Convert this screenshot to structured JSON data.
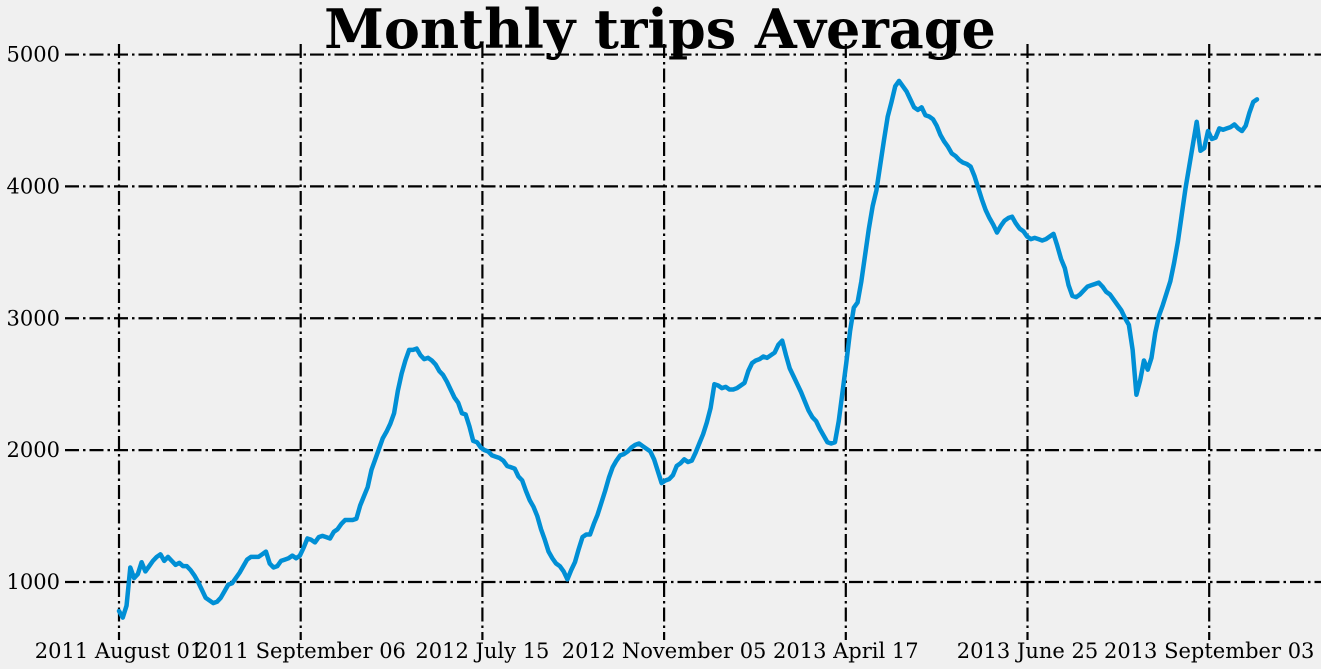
{
  "chart_data": {
    "type": "line",
    "title": "Monthly trips Average",
    "xlabel": "",
    "ylabel": "",
    "x_tick_labels": [
      "2011 August 01",
      "2011 September 06",
      "2012 July 15",
      "2012 November 05",
      "2013 April 17",
      "2013 June 25",
      "2013 September 03"
    ],
    "y_ticks": [
      1000,
      2000,
      3000,
      4000,
      5000
    ],
    "ylim": [
      560,
      5080
    ],
    "grid": true,
    "colors": {
      "series": "#008fd5",
      "background": "#f0f0f0",
      "grid": "#000000"
    },
    "series": [
      {
        "values": [
          780,
          730,
          820,
          1110,
          1030,
          1060,
          1150,
          1080,
          1120,
          1160,
          1190,
          1210,
          1160,
          1190,
          1160,
          1130,
          1145,
          1120,
          1120,
          1090,
          1050,
          1000,
          940,
          880,
          860,
          840,
          850,
          880,
          930,
          980,
          990,
          1030,
          1070,
          1120,
          1170,
          1190,
          1190,
          1190,
          1210,
          1230,
          1140,
          1110,
          1120,
          1160,
          1170,
          1180,
          1200,
          1180,
          1200,
          1260,
          1330,
          1320,
          1300,
          1340,
          1350,
          1340,
          1330,
          1380,
          1400,
          1440,
          1470,
          1470,
          1470,
          1480,
          1580,
          1650,
          1720,
          1850,
          1930,
          2010,
          2090,
          2140,
          2200,
          2280,
          2450,
          2580,
          2680,
          2760,
          2760,
          2770,
          2720,
          2690,
          2700,
          2680,
          2650,
          2600,
          2570,
          2520,
          2460,
          2400,
          2360,
          2280,
          2270,
          2180,
          2070,
          2060,
          2020,
          2000,
          1990,
          1960,
          1950,
          1940,
          1920,
          1880,
          1870,
          1860,
          1800,
          1770,
          1690,
          1620,
          1570,
          1500,
          1400,
          1320,
          1230,
          1180,
          1140,
          1120,
          1080,
          1020,
          1090,
          1150,
          1250,
          1340,
          1360,
          1360,
          1440,
          1510,
          1600,
          1690,
          1790,
          1870,
          1920,
          1960,
          1970,
          1990,
          2020,
          2040,
          2050,
          2030,
          2010,
          1990,
          1930,
          1840,
          1750,
          1770,
          1780,
          1810,
          1880,
          1900,
          1930,
          1910,
          1920,
          1980,
          2050,
          2120,
          2210,
          2320,
          2500,
          2490,
          2470,
          2480,
          2460,
          2460,
          2470,
          2490,
          2510,
          2600,
          2660,
          2680,
          2690,
          2710,
          2700,
          2720,
          2740,
          2800,
          2830,
          2720,
          2620,
          2560,
          2500,
          2440,
          2370,
          2300,
          2250,
          2220,
          2160,
          2110,
          2060,
          2050,
          2060,
          2220,
          2440,
          2660,
          2900,
          3080,
          3120,
          3280,
          3480,
          3680,
          3850,
          3970,
          4160,
          4350,
          4530,
          4640,
          4760,
          4800,
          4760,
          4720,
          4660,
          4600,
          4580,
          4600,
          4540,
          4530,
          4510,
          4460,
          4390,
          4340,
          4300,
          4250,
          4230,
          4200,
          4180,
          4170,
          4150,
          4080,
          3990,
          3900,
          3820,
          3760,
          3710,
          3650,
          3700,
          3740,
          3760,
          3770,
          3720,
          3680,
          3660,
          3620,
          3600,
          3610,
          3600,
          3590,
          3600,
          3620,
          3640,
          3550,
          3450,
          3380,
          3250,
          3170,
          3160,
          3180,
          3210,
          3240,
          3250,
          3260,
          3270,
          3240,
          3200,
          3180,
          3140,
          3100,
          3060,
          3000,
          2950,
          2760,
          2420,
          2530,
          2680,
          2610,
          2700,
          2890,
          3020,
          3100,
          3190,
          3280,
          3420,
          3580,
          3780,
          3980,
          4150,
          4320,
          4490,
          4270,
          4290,
          4420,
          4360,
          4370,
          4440,
          4430,
          4440,
          4450,
          4470,
          4440,
          4420,
          4460,
          4560,
          4640,
          4660
        ]
      }
    ]
  }
}
